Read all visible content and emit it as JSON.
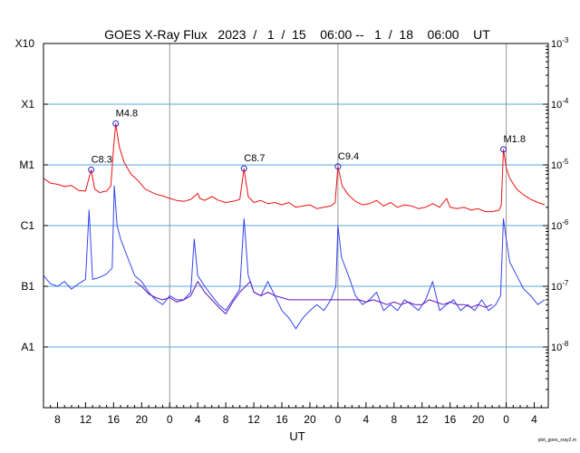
{
  "chart_data": {
    "type": "line",
    "title": "GOES X-Ray Flux   2023  /   1  /  15    06:00 --   1  /  18    06:00    UT",
    "xlabel": "UT",
    "credit": "plot_goes_xray2.m",
    "x_range_hours": [
      0,
      72
    ],
    "x_ticks": [
      {
        "t": 2,
        "label": "8"
      },
      {
        "t": 6,
        "label": "12"
      },
      {
        "t": 10,
        "label": "16"
      },
      {
        "t": 14,
        "label": "20"
      },
      {
        "t": 18,
        "label": "0"
      },
      {
        "t": 22,
        "label": "4"
      },
      {
        "t": 26,
        "label": "8"
      },
      {
        "t": 30,
        "label": "12"
      },
      {
        "t": 34,
        "label": "16"
      },
      {
        "t": 38,
        "label": "20"
      },
      {
        "t": 42,
        "label": "0"
      },
      {
        "t": 46,
        "label": "4"
      },
      {
        "t": 50,
        "label": "8"
      },
      {
        "t": 54,
        "label": "12"
      },
      {
        "t": 58,
        "label": "16"
      },
      {
        "t": 62,
        "label": "20"
      },
      {
        "t": 66,
        "label": "0"
      },
      {
        "t": 70,
        "label": "4"
      }
    ],
    "day_boundaries_hours": [
      18,
      42,
      66
    ],
    "y_scale": "log",
    "ylim": [
      1e-09,
      0.001
    ],
    "left_ticks": [
      {
        "v": 0.001,
        "label": "X10"
      },
      {
        "v": 0.0001,
        "label": "X1"
      },
      {
        "v": 1e-05,
        "label": "M1"
      },
      {
        "v": 1e-06,
        "label": "C1"
      },
      {
        "v": 1e-07,
        "label": "B1"
      },
      {
        "v": 1e-08,
        "label": "A1"
      }
    ],
    "right_ticks": [
      {
        "v": 0.001,
        "base": "10",
        "exp": "-3"
      },
      {
        "v": 0.0001,
        "base": "10",
        "exp": "-4"
      },
      {
        "v": 1e-05,
        "base": "10",
        "exp": "-5"
      },
      {
        "v": 1e-06,
        "base": "10",
        "exp": "-6"
      },
      {
        "v": 1e-07,
        "base": "10",
        "exp": "-7"
      },
      {
        "v": 1e-08,
        "base": "10",
        "exp": "-8"
      }
    ],
    "grid_levels": [
      0.0001,
      1e-05,
      1e-06,
      1e-07,
      1e-08
    ],
    "colors": {
      "long": "#ee1111",
      "short": "#3344ee",
      "short_alt": "#6611bb",
      "grid": "#55aadd",
      "day_line": "#999999",
      "marker": "#2222cc"
    },
    "flares": [
      {
        "t": 6.8,
        "v": 8.3e-06,
        "label": "C8.3"
      },
      {
        "t": 10.3,
        "v": 4.8e-05,
        "label": "M4.8"
      },
      {
        "t": 28.6,
        "v": 8.7e-06,
        "label": "C8.7"
      },
      {
        "t": 42.0,
        "v": 9.4e-06,
        "label": "C9.4"
      },
      {
        "t": 65.6,
        "v": 1.8e-05,
        "label": "M1.8"
      }
    ],
    "series": [
      {
        "name": "long",
        "points": [
          [
            0,
            6e-06
          ],
          [
            1,
            5e-06
          ],
          [
            2,
            4.8e-06
          ],
          [
            3,
            4.4e-06
          ],
          [
            4,
            4.6e-06
          ],
          [
            5,
            3.8e-06
          ],
          [
            6,
            3.7e-06
          ],
          [
            6.8,
            8.3e-06
          ],
          [
            7.3,
            4e-06
          ],
          [
            8,
            3.5e-06
          ],
          [
            9,
            3.7e-06
          ],
          [
            9.6,
            4.5e-06
          ],
          [
            10,
            2e-05
          ],
          [
            10.3,
            4.8e-05
          ],
          [
            10.8,
            2e-05
          ],
          [
            11.5,
            1.1e-05
          ],
          [
            12.5,
            7e-06
          ],
          [
            13.5,
            5.5e-06
          ],
          [
            14.5,
            4e-06
          ],
          [
            16,
            3.3e-06
          ],
          [
            17,
            3.1e-06
          ],
          [
            18,
            2.8e-06
          ],
          [
            19,
            2.6e-06
          ],
          [
            20,
            2.5e-06
          ],
          [
            21,
            2.7e-06
          ],
          [
            22,
            3.4e-06
          ],
          [
            22.3,
            2.8e-06
          ],
          [
            23,
            2.6e-06
          ],
          [
            24,
            3e-06
          ],
          [
            25,
            2.6e-06
          ],
          [
            26,
            2.4e-06
          ],
          [
            27,
            2.5e-06
          ],
          [
            28,
            2.7e-06
          ],
          [
            28.6,
            8.7e-06
          ],
          [
            29.2,
            3e-06
          ],
          [
            30,
            2.4e-06
          ],
          [
            31,
            2.6e-06
          ],
          [
            32,
            2.3e-06
          ],
          [
            33,
            2.4e-06
          ],
          [
            34,
            2.2e-06
          ],
          [
            35,
            2.4e-06
          ],
          [
            36,
            2e-06
          ],
          [
            37,
            2.1e-06
          ],
          [
            38,
            2.2e-06
          ],
          [
            39,
            1.9e-06
          ],
          [
            40,
            2e-06
          ],
          [
            41,
            2.1e-06
          ],
          [
            41.6,
            2.4e-06
          ],
          [
            42.0,
            9.4e-06
          ],
          [
            42.6,
            4.5e-06
          ],
          [
            43.5,
            3.2e-06
          ],
          [
            44.5,
            2.5e-06
          ],
          [
            45.5,
            2.2e-06
          ],
          [
            46.5,
            2.3e-06
          ],
          [
            47.5,
            2.6e-06
          ],
          [
            48.5,
            2.1e-06
          ],
          [
            49.5,
            2.4e-06
          ],
          [
            50.5,
            2e-06
          ],
          [
            51.5,
            2.2e-06
          ],
          [
            52.5,
            2.1e-06
          ],
          [
            53.5,
            1.9e-06
          ],
          [
            54.5,
            2e-06
          ],
          [
            55.5,
            2.3e-06
          ],
          [
            56.5,
            2e-06
          ],
          [
            57.5,
            2.8e-06
          ],
          [
            58,
            2e-06
          ],
          [
            59,
            1.9e-06
          ],
          [
            60,
            2e-06
          ],
          [
            61,
            1.8e-06
          ],
          [
            62,
            1.9e-06
          ],
          [
            63,
            1.7e-06
          ],
          [
            64,
            1.7e-06
          ],
          [
            65,
            1.8e-06
          ],
          [
            65.3,
            2.2e-06
          ],
          [
            65.6,
            1.8e-05
          ],
          [
            66,
            9e-06
          ],
          [
            66.5,
            6e-06
          ],
          [
            67.5,
            4e-06
          ],
          [
            68.5,
            3.2e-06
          ],
          [
            69.5,
            2.7e-06
          ],
          [
            70.5,
            2.4e-06
          ],
          [
            71.5,
            2.2e-06
          ]
        ]
      },
      {
        "name": "short",
        "points": [
          [
            0,
            1.5e-07
          ],
          [
            1,
            1.1e-07
          ],
          [
            2,
            1e-07
          ],
          [
            3,
            1.2e-07
          ],
          [
            4,
            9e-08
          ],
          [
            5,
            1.1e-07
          ],
          [
            6,
            1.3e-07
          ],
          [
            6.5,
            1.8e-06
          ],
          [
            7,
            1.3e-07
          ],
          [
            8,
            1.4e-07
          ],
          [
            9,
            1.6e-07
          ],
          [
            9.8,
            2e-07
          ],
          [
            10.1,
            4.5e-06
          ],
          [
            10.5,
            1e-06
          ],
          [
            11,
            6e-07
          ],
          [
            12,
            3e-07
          ],
          [
            13,
            1.5e-07
          ],
          [
            14,
            1.2e-07
          ],
          [
            15,
            8e-08
          ],
          [
            16,
            6e-08
          ],
          [
            17,
            5e-08
          ],
          [
            18,
            7e-08
          ],
          [
            19,
            6e-08
          ],
          [
            20,
            6e-08
          ],
          [
            21,
            8e-08
          ],
          [
            21.5,
            6e-07
          ],
          [
            22,
            1.5e-07
          ],
          [
            23,
            1e-07
          ],
          [
            24,
            7e-08
          ],
          [
            25,
            5e-08
          ],
          [
            26,
            4e-08
          ],
          [
            27,
            6e-08
          ],
          [
            28,
            9e-08
          ],
          [
            28.6,
            1.3e-06
          ],
          [
            29.2,
            1.5e-07
          ],
          [
            30,
            8e-08
          ],
          [
            31,
            7e-08
          ],
          [
            32,
            1.2e-07
          ],
          [
            33,
            7e-08
          ],
          [
            34,
            4e-08
          ],
          [
            35,
            3e-08
          ],
          [
            36,
            2e-08
          ],
          [
            37,
            3e-08
          ],
          [
            38,
            4e-08
          ],
          [
            39,
            5e-08
          ],
          [
            40,
            4e-08
          ],
          [
            41,
            6e-08
          ],
          [
            41.7,
            1e-07
          ],
          [
            42.0,
            1e-06
          ],
          [
            42.5,
            3e-07
          ],
          [
            43.5,
            1.5e-07
          ],
          [
            44.5,
            7e-08
          ],
          [
            45.5,
            5e-08
          ],
          [
            46.5,
            6e-08
          ],
          [
            47.5,
            8e-08
          ],
          [
            48.5,
            4e-08
          ],
          [
            49.5,
            5e-08
          ],
          [
            50.5,
            4e-08
          ],
          [
            51.5,
            6e-08
          ],
          [
            52.5,
            5e-08
          ],
          [
            53.5,
            4e-08
          ],
          [
            54.5,
            6e-08
          ],
          [
            55.5,
            1.2e-07
          ],
          [
            56.5,
            4e-08
          ],
          [
            57.5,
            5e-08
          ],
          [
            58.5,
            6e-08
          ],
          [
            59.5,
            4e-08
          ],
          [
            60.5,
            5e-08
          ],
          [
            61.5,
            4e-08
          ],
          [
            62.5,
            6e-08
          ],
          [
            63.5,
            4e-08
          ],
          [
            64.5,
            5e-08
          ],
          [
            65.2,
            7e-08
          ],
          [
            65.6,
            1.3e-06
          ],
          [
            66,
            6e-07
          ],
          [
            66.5,
            2.5e-07
          ],
          [
            67.5,
            1.5e-07
          ],
          [
            68.5,
            9e-08
          ],
          [
            69.5,
            7e-08
          ],
          [
            70.5,
            5e-08
          ],
          [
            71.5,
            6e-08
          ]
        ]
      },
      {
        "name": "short_alt",
        "points": [
          [
            13,
            1.2e-07
          ],
          [
            14,
            1e-07
          ],
          [
            15,
            7.5e-08
          ],
          [
            16,
            6.5e-08
          ],
          [
            17,
            6e-08
          ],
          [
            18,
            6.5e-08
          ],
          [
            19,
            5.5e-08
          ],
          [
            20,
            6e-08
          ],
          [
            21,
            7e-08
          ],
          [
            22,
            1.2e-07
          ],
          [
            23,
            8e-08
          ],
          [
            24,
            6e-08
          ],
          [
            25,
            4.5e-08
          ],
          [
            26,
            3.5e-08
          ],
          [
            27,
            5.5e-08
          ],
          [
            28,
            8e-08
          ],
          [
            29.5,
            1.2e-07
          ],
          [
            30,
            8e-08
          ],
          [
            31,
            7e-08
          ],
          [
            32,
            8e-08
          ],
          [
            33,
            7e-08
          ],
          [
            34,
            6.5e-08
          ],
          [
            35,
            6e-08
          ],
          [
            45,
            6e-08
          ],
          [
            46,
            5.5e-08
          ],
          [
            47,
            6e-08
          ],
          [
            48,
            5.5e-08
          ],
          [
            49,
            5e-08
          ],
          [
            50,
            5.5e-08
          ],
          [
            51,
            5e-08
          ],
          [
            52,
            5.5e-08
          ],
          [
            53,
            5e-08
          ],
          [
            54,
            5e-08
          ],
          [
            55,
            6e-08
          ],
          [
            56,
            5.5e-08
          ],
          [
            57,
            5e-08
          ],
          [
            58,
            5.5e-08
          ],
          [
            59,
            5e-08
          ],
          [
            60,
            5e-08
          ],
          [
            61,
            4.5e-08
          ],
          [
            62,
            5e-08
          ],
          [
            63,
            4.5e-08
          ],
          [
            64,
            5e-08
          ]
        ]
      }
    ]
  }
}
